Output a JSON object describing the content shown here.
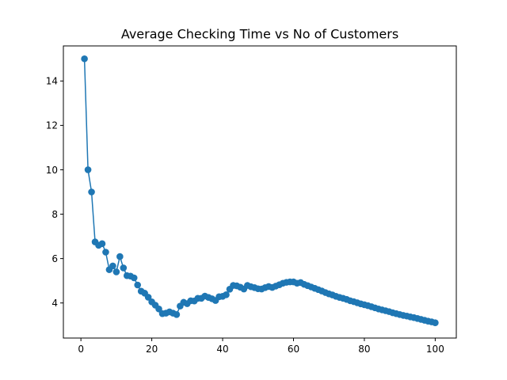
{
  "chart_data": {
    "type": "line",
    "title": "Average Checking Time vs No of Customers",
    "xlabel": "",
    "ylabel": "",
    "xlim": [
      -4.95,
      105.95
    ],
    "ylim": [
      2.42,
      15.58
    ],
    "xticks": [
      0,
      20,
      40,
      60,
      80,
      100
    ],
    "yticks": [
      4,
      6,
      8,
      10,
      12,
      14
    ],
    "grid": false,
    "color": "#1f77b4",
    "markers": true,
    "x": [
      1,
      2,
      3,
      4,
      5,
      6,
      7,
      8,
      9,
      10,
      11,
      12,
      13,
      14,
      15,
      16,
      17,
      18,
      19,
      20,
      21,
      22,
      23,
      24,
      25,
      26,
      27,
      28,
      29,
      30,
      31,
      32,
      33,
      34,
      35,
      36,
      37,
      38,
      39,
      40,
      41,
      42,
      43,
      44,
      45,
      46,
      47,
      48,
      49,
      50,
      51,
      52,
      53,
      54,
      55,
      56,
      57,
      58,
      59,
      60,
      61,
      62,
      63,
      64,
      65,
      66,
      67,
      68,
      69,
      70,
      71,
      72,
      73,
      74,
      75,
      76,
      77,
      78,
      79,
      80,
      81,
      82,
      83,
      84,
      85,
      86,
      87,
      88,
      89,
      90,
      91,
      92,
      93,
      94,
      95,
      96,
      97,
      98,
      99,
      100
    ],
    "y": [
      15.0,
      10.0,
      9.0,
      6.75,
      6.6,
      6.67,
      6.29,
      5.5,
      5.67,
      5.4,
      6.09,
      5.58,
      5.23,
      5.21,
      5.13,
      4.81,
      4.53,
      4.44,
      4.26,
      4.05,
      3.9,
      3.73,
      3.52,
      3.54,
      3.6,
      3.54,
      3.48,
      3.86,
      4.03,
      3.97,
      4.1,
      4.09,
      4.21,
      4.21,
      4.31,
      4.25,
      4.19,
      4.11,
      4.28,
      4.3,
      4.37,
      4.62,
      4.79,
      4.77,
      4.71,
      4.63,
      4.79,
      4.73,
      4.69,
      4.64,
      4.63,
      4.69,
      4.74,
      4.7,
      4.76,
      4.82,
      4.89,
      4.93,
      4.95,
      4.95,
      4.89,
      4.92,
      4.84,
      4.78,
      4.72,
      4.66,
      4.6,
      4.54,
      4.47,
      4.41,
      4.36,
      4.3,
      4.25,
      4.21,
      4.16,
      4.1,
      4.06,
      4.01,
      3.96,
      3.92,
      3.88,
      3.83,
      3.78,
      3.73,
      3.69,
      3.65,
      3.61,
      3.56,
      3.52,
      3.48,
      3.44,
      3.41,
      3.37,
      3.34,
      3.3,
      3.26,
      3.22,
      3.18,
      3.15,
      3.11
    ]
  }
}
